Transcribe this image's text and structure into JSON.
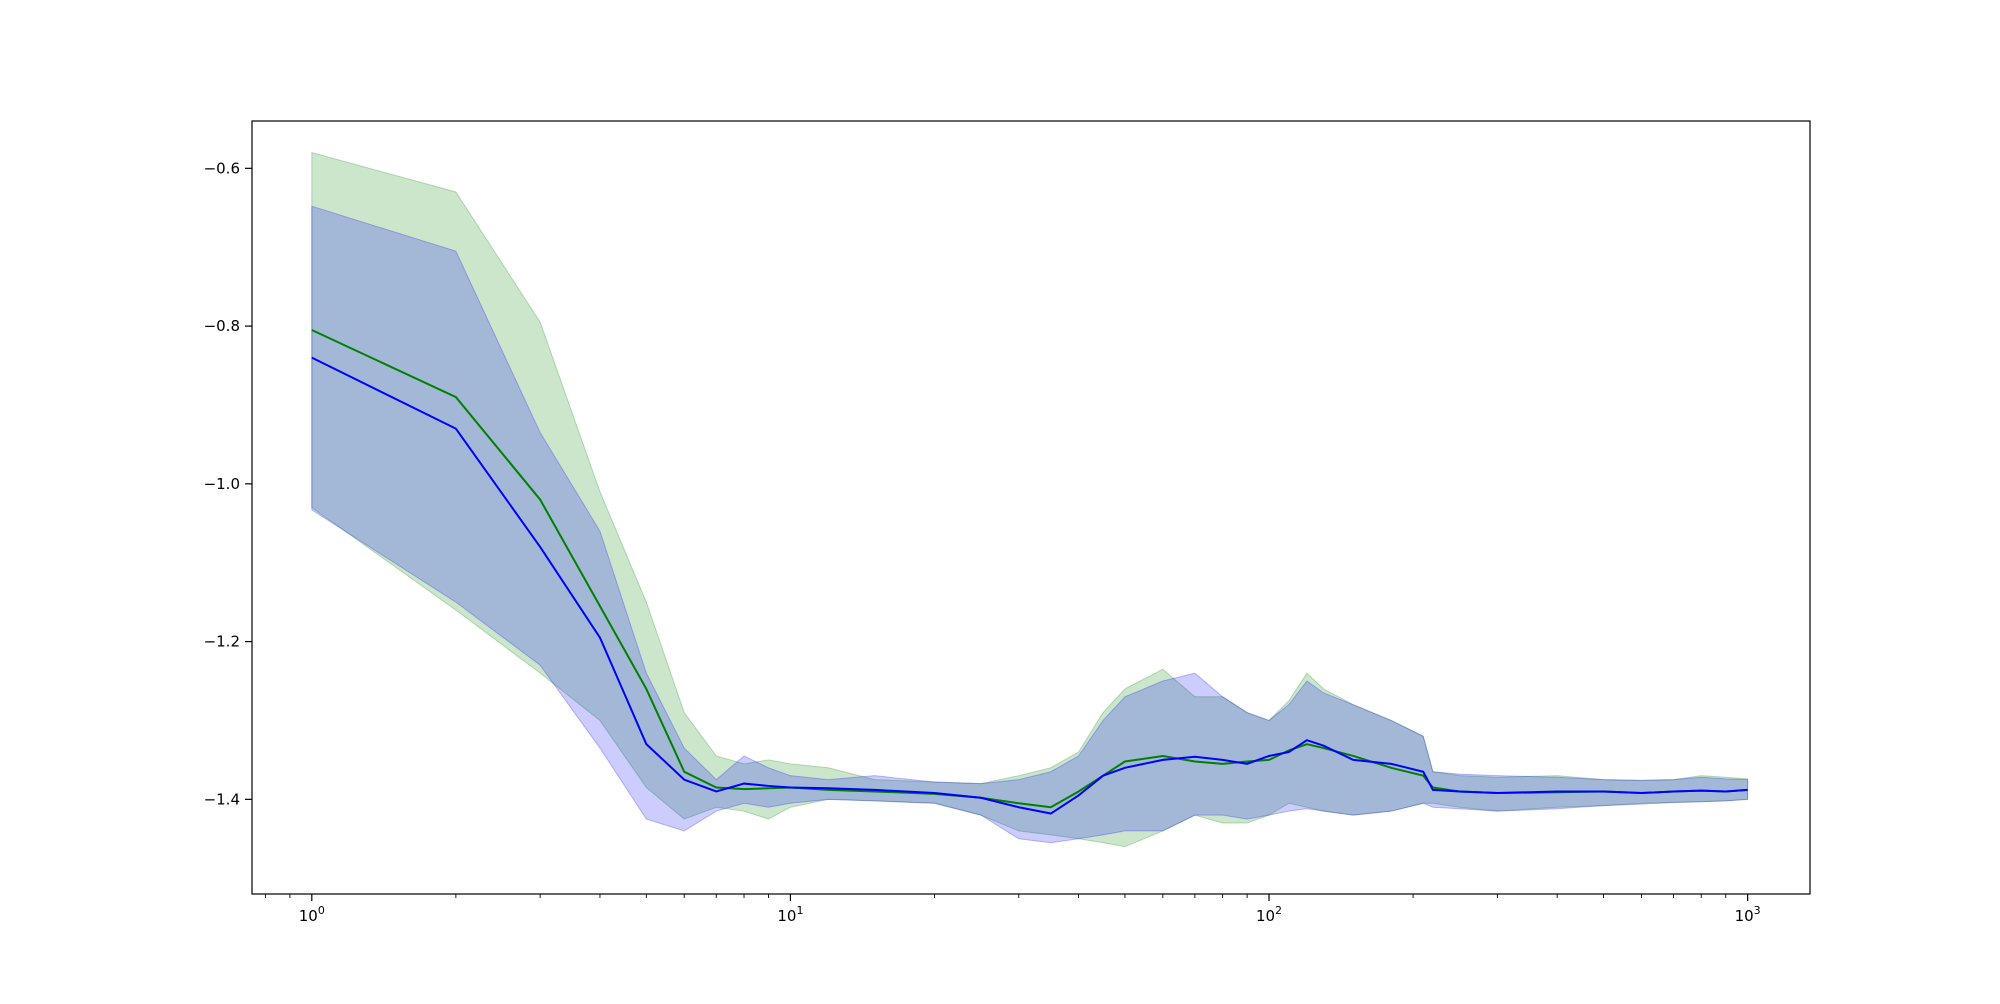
{
  "chart_data": {
    "type": "line",
    "x_scale": "log",
    "xlim": [
      0.75,
      1350
    ],
    "ylim": [
      -1.52,
      -0.54
    ],
    "grid": false,
    "x_ticks": [
      {
        "value": 1,
        "base": "10",
        "exp": "0"
      },
      {
        "value": 10,
        "base": "10",
        "exp": "1"
      },
      {
        "value": 100,
        "base": "10",
        "exp": "2"
      },
      {
        "value": 1000,
        "base": "10",
        "exp": "3"
      }
    ],
    "y_ticks": [
      {
        "value": -0.6,
        "label": "−0.6"
      },
      {
        "value": -0.8,
        "label": "−0.8"
      },
      {
        "value": -1.0,
        "label": "−1.0"
      },
      {
        "value": -1.2,
        "label": "−1.2"
      },
      {
        "value": -1.4,
        "label": "−1.4"
      }
    ],
    "colors": {
      "green_line": "#008000",
      "green_band": "#008000",
      "blue_line": "#0000ff",
      "blue_band": "#0000ff"
    },
    "series": [
      {
        "color_key": "green",
        "x": [
          1,
          2,
          3,
          4,
          5,
          6,
          7,
          8,
          9,
          10,
          12,
          15,
          20,
          25,
          30,
          35,
          40,
          45,
          50,
          60,
          70,
          80,
          90,
          100,
          110,
          120,
          130,
          150,
          180,
          210,
          220,
          250,
          300,
          400,
          500,
          600,
          700,
          800,
          900,
          1000
        ],
        "y": [
          -0.805,
          -0.89,
          -1.02,
          -1.155,
          -1.26,
          -1.365,
          -1.385,
          -1.387,
          -1.386,
          -1.385,
          -1.388,
          -1.39,
          -1.393,
          -1.398,
          -1.405,
          -1.41,
          -1.39,
          -1.37,
          -1.352,
          -1.345,
          -1.352,
          -1.355,
          -1.352,
          -1.35,
          -1.338,
          -1.33,
          -1.335,
          -1.345,
          -1.36,
          -1.37,
          -1.385,
          -1.39,
          -1.392,
          -1.391,
          -1.39,
          -1.392,
          -1.39,
          -1.389,
          -1.39,
          -1.388
        ],
        "lower": [
          -1.03,
          -1.16,
          -1.24,
          -1.3,
          -1.385,
          -1.425,
          -1.41,
          -1.415,
          -1.425,
          -1.41,
          -1.4,
          -1.402,
          -1.405,
          -1.42,
          -1.44,
          -1.445,
          -1.45,
          -1.455,
          -1.46,
          -1.44,
          -1.42,
          -1.43,
          -1.43,
          -1.42,
          -1.405,
          -1.41,
          -1.415,
          -1.42,
          -1.415,
          -1.405,
          -1.405,
          -1.41,
          -1.415,
          -1.41,
          -1.408,
          -1.405,
          -1.404,
          -1.403,
          -1.402,
          -1.4
        ],
        "upper": [
          -0.58,
          -0.63,
          -0.795,
          -1.01,
          -1.15,
          -1.29,
          -1.345,
          -1.355,
          -1.35,
          -1.355,
          -1.36,
          -1.375,
          -1.378,
          -1.38,
          -1.37,
          -1.36,
          -1.34,
          -1.29,
          -1.26,
          -1.235,
          -1.27,
          -1.27,
          -1.29,
          -1.3,
          -1.275,
          -1.24,
          -1.26,
          -1.28,
          -1.3,
          -1.32,
          -1.365,
          -1.37,
          -1.372,
          -1.37,
          -1.375,
          -1.376,
          -1.375,
          -1.37,
          -1.372,
          -1.374
        ]
      },
      {
        "color_key": "blue",
        "x": [
          1,
          2,
          3,
          4,
          5,
          6,
          7,
          8,
          9,
          10,
          12,
          15,
          20,
          25,
          30,
          35,
          40,
          45,
          50,
          60,
          70,
          80,
          90,
          100,
          110,
          120,
          130,
          150,
          180,
          210,
          220,
          250,
          300,
          400,
          500,
          600,
          700,
          800,
          900,
          1000
        ],
        "y": [
          -0.84,
          -0.93,
          -1.08,
          -1.195,
          -1.33,
          -1.375,
          -1.39,
          -1.38,
          -1.383,
          -1.385,
          -1.386,
          -1.388,
          -1.392,
          -1.398,
          -1.41,
          -1.418,
          -1.395,
          -1.37,
          -1.36,
          -1.35,
          -1.346,
          -1.35,
          -1.355,
          -1.345,
          -1.34,
          -1.325,
          -1.332,
          -1.35,
          -1.355,
          -1.365,
          -1.388,
          -1.39,
          -1.392,
          -1.39,
          -1.39,
          -1.392,
          -1.39,
          -1.389,
          -1.39,
          -1.388
        ],
        "lower": [
          -1.033,
          -1.15,
          -1.23,
          -1.335,
          -1.425,
          -1.44,
          -1.415,
          -1.405,
          -1.41,
          -1.405,
          -1.4,
          -1.402,
          -1.405,
          -1.42,
          -1.45,
          -1.455,
          -1.45,
          -1.445,
          -1.44,
          -1.44,
          -1.42,
          -1.42,
          -1.425,
          -1.42,
          -1.415,
          -1.412,
          -1.415,
          -1.42,
          -1.415,
          -1.405,
          -1.41,
          -1.412,
          -1.415,
          -1.412,
          -1.408,
          -1.406,
          -1.404,
          -1.403,
          -1.402,
          -1.4
        ],
        "upper": [
          -0.648,
          -0.705,
          -0.935,
          -1.06,
          -1.24,
          -1.335,
          -1.375,
          -1.345,
          -1.36,
          -1.37,
          -1.375,
          -1.37,
          -1.378,
          -1.38,
          -1.375,
          -1.365,
          -1.345,
          -1.3,
          -1.27,
          -1.25,
          -1.24,
          -1.27,
          -1.29,
          -1.3,
          -1.28,
          -1.25,
          -1.265,
          -1.28,
          -1.3,
          -1.32,
          -1.365,
          -1.368,
          -1.37,
          -1.372,
          -1.375,
          -1.376,
          -1.375,
          -1.372,
          -1.374,
          -1.375
        ]
      }
    ]
  }
}
